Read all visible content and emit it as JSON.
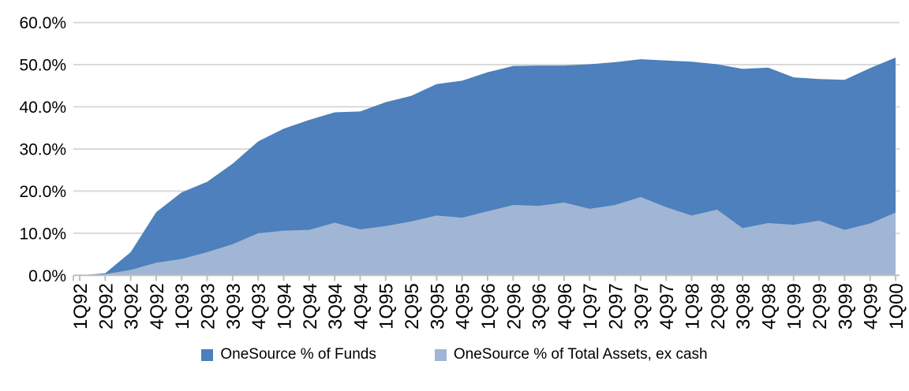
{
  "chart_data": {
    "type": "area",
    "overlapped": true,
    "title": "",
    "xlabel": "",
    "ylabel": "",
    "ylim": [
      0,
      60
    ],
    "ytick_labels": [
      "0.0%",
      "10.0%",
      "20.0%",
      "30.0%",
      "40.0%",
      "50.0%",
      "60.0%"
    ],
    "grid": "horizontal",
    "legend_position": "bottom",
    "categories": [
      "1Q92",
      "2Q92",
      "3Q92",
      "4Q92",
      "1Q93",
      "2Q93",
      "3Q93",
      "4Q93",
      "1Q94",
      "2Q94",
      "3Q94",
      "4Q94",
      "1Q95",
      "2Q95",
      "3Q95",
      "4Q95",
      "1Q96",
      "2Q96",
      "3Q96",
      "4Q96",
      "1Q97",
      "2Q97",
      "3Q97",
      "4Q97",
      "1Q98",
      "2Q98",
      "3Q98",
      "4Q98",
      "1Q99",
      "2Q99",
      "3Q99",
      "4Q99",
      "1Q00"
    ],
    "series": [
      {
        "name": "OneSource % of Funds",
        "color": "#4d80bc",
        "values": [
          0.0,
          0.5,
          5.5,
          15.0,
          19.7,
          22.2,
          26.5,
          31.8,
          34.8,
          36.9,
          38.7,
          38.9,
          41.1,
          42.6,
          45.4,
          46.2,
          48.2,
          49.7,
          49.8,
          49.8,
          50.1,
          50.6,
          51.3,
          51.0,
          50.7,
          50.1,
          49.0,
          49.3,
          47.0,
          46.6,
          46.4,
          49.2,
          51.7
        ]
      },
      {
        "name": "OneSource % of Total Assets, ex cash",
        "color": "#a0b6d4",
        "values": [
          0.0,
          0.3,
          1.3,
          3.0,
          3.9,
          5.5,
          7.4,
          10.0,
          10.6,
          10.8,
          12.5,
          10.9,
          11.7,
          12.8,
          14.2,
          13.7,
          15.2,
          16.7,
          16.5,
          17.3,
          15.8,
          16.7,
          18.6,
          16.2,
          14.2,
          15.6,
          11.2,
          12.4,
          12.0,
          13.0,
          10.8,
          12.3,
          14.9
        ]
      }
    ],
    "colors": {
      "gridline": "#d9d9d9",
      "axis": "#bfbfbf",
      "text": "#000000",
      "background": "#ffffff"
    }
  }
}
